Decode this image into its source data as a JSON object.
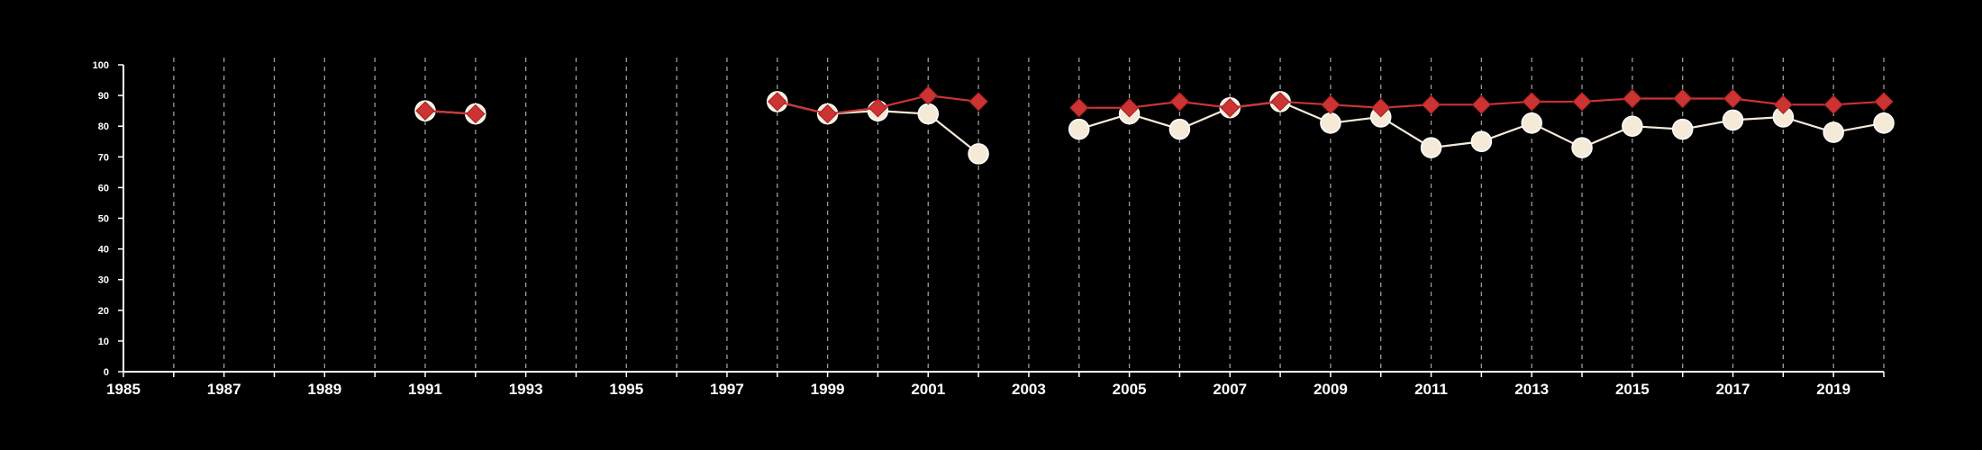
{
  "chart_data": {
    "type": "line",
    "title": "",
    "xlabel": "",
    "ylabel": "",
    "xlim": [
      1985,
      2020
    ],
    "ylim": [
      0,
      100
    ],
    "x_ticks": [
      "1985",
      "1987",
      "1989",
      "1991",
      "1993",
      "1995",
      "1997",
      "1999",
      "2001",
      "2003",
      "2005",
      "2007",
      "2009",
      "2011",
      "2013",
      "2015",
      "2017",
      "2019"
    ],
    "y_ticks": [
      "0",
      "10",
      "20",
      "30",
      "40",
      "50",
      "60",
      "70",
      "80",
      "90",
      "100"
    ],
    "vertical_grid": "dashed, one per year",
    "legend": "none",
    "series": [
      {
        "marker": "diamond",
        "color": "#cc3333",
        "points": [
          {
            "x": 1991,
            "y": 85
          },
          {
            "x": 1992,
            "y": 84
          },
          {
            "x": 1998,
            "y": 88
          },
          {
            "x": 1999,
            "y": 84
          },
          {
            "x": 2000,
            "y": 86
          },
          {
            "x": 2001,
            "y": 90
          },
          {
            "x": 2002,
            "y": 88
          },
          {
            "x": 2004,
            "y": 86
          },
          {
            "x": 2005,
            "y": 86
          },
          {
            "x": 2006,
            "y": 88
          },
          {
            "x": 2007,
            "y": 86
          },
          {
            "x": 2008,
            "y": 88
          },
          {
            "x": 2009,
            "y": 87
          },
          {
            "x": 2010,
            "y": 86
          },
          {
            "x": 2011,
            "y": 87
          },
          {
            "x": 2012,
            "y": 87
          },
          {
            "x": 2013,
            "y": 88
          },
          {
            "x": 2014,
            "y": 88
          },
          {
            "x": 2015,
            "y": 89
          },
          {
            "x": 2016,
            "y": 89
          },
          {
            "x": 2017,
            "y": 89
          },
          {
            "x": 2018,
            "y": 87
          },
          {
            "x": 2019,
            "y": 87
          },
          {
            "x": 2020,
            "y": 88
          }
        ]
      },
      {
        "marker": "circle",
        "color": "#f5ead8",
        "points": [
          {
            "x": 1991,
            "y": 85
          },
          {
            "x": 1992,
            "y": 84
          },
          {
            "x": 1998,
            "y": 88
          },
          {
            "x": 1999,
            "y": 84
          },
          {
            "x": 2000,
            "y": 85
          },
          {
            "x": 2001,
            "y": 84
          },
          {
            "x": 2002,
            "y": 71
          },
          {
            "x": 2004,
            "y": 79
          },
          {
            "x": 2005,
            "y": 84
          },
          {
            "x": 2006,
            "y": 79
          },
          {
            "x": 2007,
            "y": 86
          },
          {
            "x": 2008,
            "y": 88
          },
          {
            "x": 2009,
            "y": 81
          },
          {
            "x": 2010,
            "y": 83
          },
          {
            "x": 2011,
            "y": 73
          },
          {
            "x": 2012,
            "y": 75
          },
          {
            "x": 2013,
            "y": 81
          },
          {
            "x": 2014,
            "y": 73
          },
          {
            "x": 2015,
            "y": 80
          },
          {
            "x": 2016,
            "y": 79
          },
          {
            "x": 2017,
            "y": 82
          },
          {
            "x": 2018,
            "y": 83
          },
          {
            "x": 2019,
            "y": 78
          },
          {
            "x": 2020,
            "y": 81
          }
        ]
      }
    ]
  }
}
